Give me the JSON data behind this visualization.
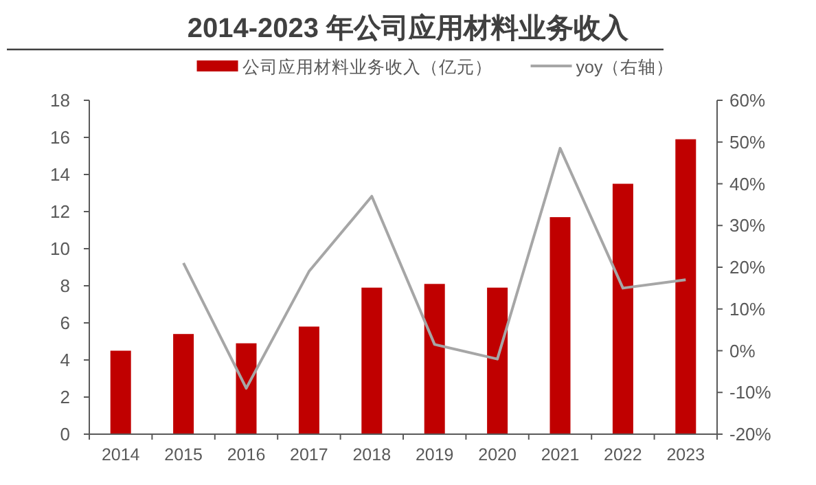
{
  "chart_data": {
    "type": "bar",
    "title": "2014-2023 年公司应用材料业务收入",
    "categories": [
      "2014",
      "2015",
      "2016",
      "2017",
      "2018",
      "2019",
      "2020",
      "2021",
      "2022",
      "2023"
    ],
    "series": [
      {
        "name": "公司应用材料业务收入（亿元）",
        "color": "#c00000",
        "values": [
          4.5,
          5.4,
          4.9,
          5.8,
          7.9,
          8.1,
          7.9,
          11.7,
          13.5,
          15.9
        ]
      },
      {
        "name": "yoy（右轴）",
        "type": "line",
        "axis": "y2",
        "color": "#a6a6a6",
        "values": [
          null,
          21,
          -9,
          19,
          37,
          1.5,
          -2,
          48.5,
          15,
          17
        ]
      }
    ],
    "ylim": [
      0,
      18
    ],
    "yticks": [
      0,
      2,
      4,
      6,
      8,
      10,
      12,
      14,
      16,
      18
    ],
    "y2lim": [
      -20,
      60
    ],
    "y2ticks": [
      {
        "value": -20,
        "label": "-20%"
      },
      {
        "value": -10,
        "label": "-10%"
      },
      {
        "value": 0,
        "label": "0%"
      },
      {
        "value": 10,
        "label": "10%"
      },
      {
        "value": 20,
        "label": "20%"
      },
      {
        "value": 30,
        "label": "30%"
      },
      {
        "value": 40,
        "label": "40%"
      },
      {
        "value": 50,
        "label": "50%"
      },
      {
        "value": 60,
        "label": "60%"
      }
    ],
    "grid": false,
    "legend": "top"
  }
}
